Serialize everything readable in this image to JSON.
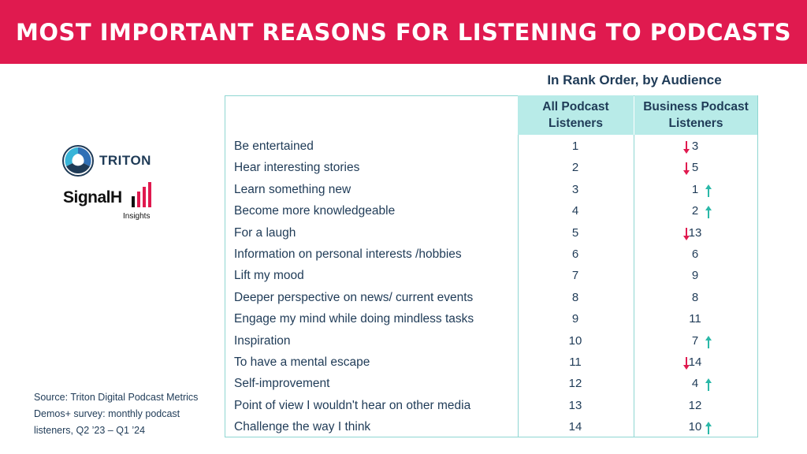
{
  "title": "MOST IMPORTANT REASONS FOR LISTENING TO PODCASTS",
  "subtitle": "In Rank Order, by Audience",
  "logos": {
    "triton": "TRITON",
    "signal_hill": "SignalHill",
    "signal_hill_sub": "Insights"
  },
  "source": "Source: Triton Digital Podcast Metrics Demos+ survey:  monthly podcast listeners, Q2 ’23 – Q1 ’24",
  "colors": {
    "banner": "#e01a4f",
    "header_fill": "#b8ebe8",
    "border": "#8fd6d2",
    "text": "#1f3b57",
    "arrow_down": "#e01a4f",
    "arrow_up": "#2bb8a8"
  },
  "chart_data": {
    "type": "table",
    "columns": [
      "",
      "All Podcast Listeners",
      "Business Podcast Listeners"
    ],
    "column_headers": {
      "all": [
        "All Podcast",
        "Listeners"
      ],
      "business": [
        "Business Podcast",
        "Listeners"
      ]
    },
    "rows": [
      {
        "reason": "Be entertained",
        "all": 1,
        "business": 3,
        "trend": "down"
      },
      {
        "reason": "Hear interesting stories",
        "all": 2,
        "business": 5,
        "trend": "down"
      },
      {
        "reason": "Learn something new",
        "all": 3,
        "business": 1,
        "trend": "up"
      },
      {
        "reason": "Become more knowledgeable",
        "all": 4,
        "business": 2,
        "trend": "up"
      },
      {
        "reason": "For a laugh",
        "all": 5,
        "business": 13,
        "trend": "down"
      },
      {
        "reason": "Information on personal interests /hobbies",
        "all": 6,
        "business": 6,
        "trend": "none"
      },
      {
        "reason": "Lift my mood",
        "all": 7,
        "business": 9,
        "trend": "none"
      },
      {
        "reason": "Deeper perspective on news/ current events",
        "all": 8,
        "business": 8,
        "trend": "none"
      },
      {
        "reason": "Engage my mind while doing mindless tasks",
        "all": 9,
        "business": 11,
        "trend": "none"
      },
      {
        "reason": "Inspiration",
        "all": 10,
        "business": 7,
        "trend": "up"
      },
      {
        "reason": "To have a mental escape",
        "all": 11,
        "business": 14,
        "trend": "down"
      },
      {
        "reason": "Self-improvement",
        "all": 12,
        "business": 4,
        "trend": "up"
      },
      {
        "reason": "Point of view I wouldn't hear on other media",
        "all": 13,
        "business": 12,
        "trend": "none"
      },
      {
        "reason": "Challenge the way I think",
        "all": 14,
        "business": 10,
        "trend": "up"
      }
    ]
  }
}
